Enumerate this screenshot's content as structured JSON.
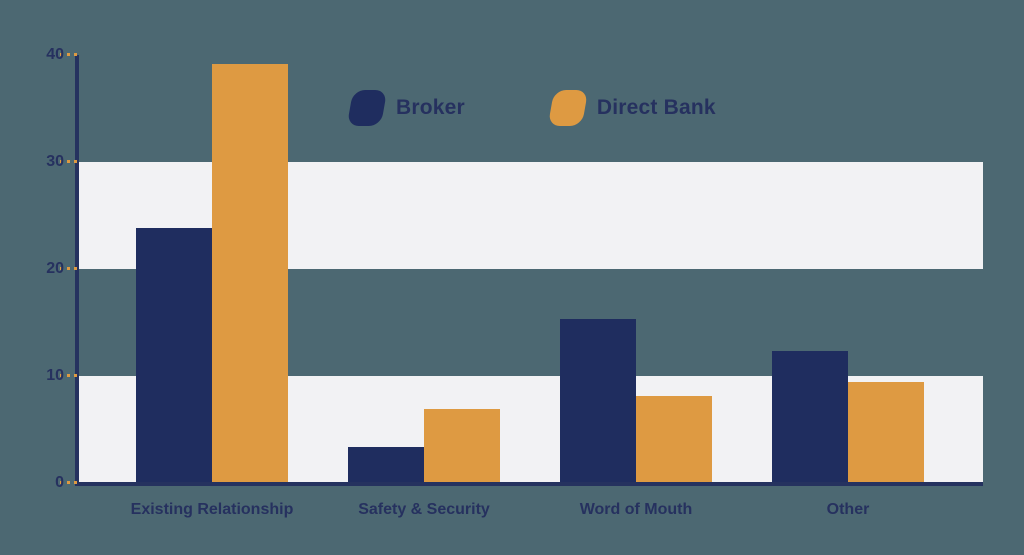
{
  "colors": {
    "background": "#4C6872",
    "band": "#F2F2F4",
    "axis": "#25325F",
    "tick_dash": "#DE9A42",
    "text": "#26315F"
  },
  "chart_data": {
    "type": "bar",
    "categories": [
      "Existing Relationship",
      "Safety & Security",
      "Word of Mouth",
      "Other"
    ],
    "series": [
      {
        "name": "Broker",
        "color": "#1F2D5F",
        "values": [
          23.8,
          3.4,
          15.3,
          12.3
        ]
      },
      {
        "name": "Direct Bank",
        "color": "#DE9A42",
        "values": [
          39.2,
          6.9,
          8.1,
          9.4
        ]
      }
    ],
    "title": "",
    "xlabel": "",
    "ylabel": "",
    "ylim": [
      0,
      40
    ],
    "yticks": [
      0,
      10,
      20,
      30,
      40
    ],
    "background_bands": [
      [
        0,
        10
      ],
      [
        20,
        30
      ]
    ],
    "grid": "alternating-horizontal-bands",
    "legend_position": "top-center"
  }
}
